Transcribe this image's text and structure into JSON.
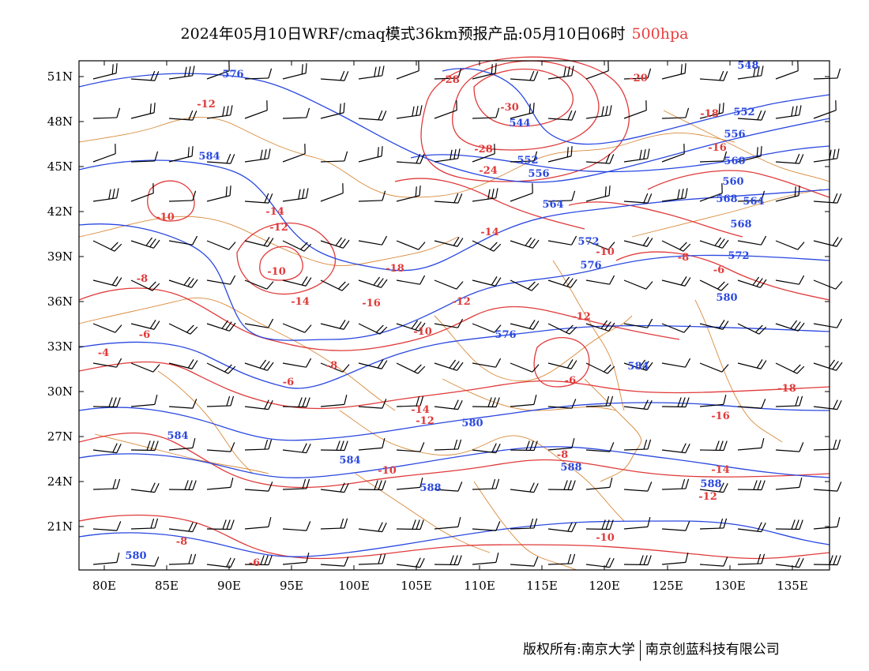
{
  "title": {
    "main": "2024年05月10日WRF/cmaq模式36km预报产品:05月10日06时",
    "level": "500hpa"
  },
  "map": {
    "lat_labels": [
      "51N",
      "48N",
      "45N",
      "42N",
      "39N",
      "36N",
      "33N",
      "30N",
      "27N",
      "24N",
      "21N"
    ],
    "lon_labels": [
      "80E",
      "85E",
      "90E",
      "95E",
      "100E",
      "105E",
      "110E",
      "115E",
      "120E",
      "125E",
      "130E",
      "135E"
    ],
    "colors": {
      "height_contour": "#2a48e0",
      "temperature_contour": "#e03a3a",
      "borders": "#d88a3a",
      "wind_barbs": "#000000",
      "frame": "#000000"
    },
    "height_labels": [
      "576",
      "584",
      "544",
      "552",
      "556",
      "560",
      "564",
      "568",
      "572",
      "576",
      "580",
      "584",
      "588",
      "548",
      "552",
      "556",
      "560",
      "564",
      "568",
      "572",
      "576",
      "580",
      "584",
      "588",
      "588",
      "584",
      "580"
    ],
    "temperature_labels": [
      "-28",
      "-30",
      "-28",
      "-24",
      "-20",
      "-18",
      "-16",
      "-14",
      "-12",
      "-10",
      "-8",
      "-6",
      "-4",
      "-12",
      "-10",
      "-14",
      "-16",
      "-18",
      "-14",
      "-12",
      "-10",
      "-8",
      "-6",
      "-14",
      "-12",
      "-10",
      "-8",
      "-6",
      "-12",
      "-10",
      "-8",
      "-6",
      "-18",
      "-16",
      "-14",
      "-12",
      "-10",
      "-8",
      "-6"
    ]
  },
  "copyright": {
    "left": "版权所有:南京大学",
    "right": "南京创蓝科技有限公司"
  }
}
